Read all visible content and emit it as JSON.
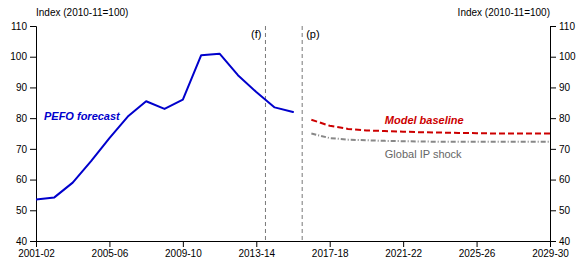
{
  "chart_data": {
    "type": "line",
    "y_label": "Index (2010-11=100)",
    "y2_label": "Index (2010-11=100)",
    "xlim": [
      0,
      28
    ],
    "xticks": [
      {
        "value": 0,
        "label": "2001-02"
      },
      {
        "value": 4,
        "label": "2005-06"
      },
      {
        "value": 8,
        "label": "2009-10"
      },
      {
        "value": 12,
        "label": "2013-14"
      },
      {
        "value": 16,
        "label": "2017-18"
      },
      {
        "value": 20,
        "label": "2021-22"
      },
      {
        "value": 24,
        "label": "2025-26"
      },
      {
        "value": 28,
        "label": "2029-30"
      }
    ],
    "ylim": [
      40,
      110
    ],
    "yticks": [
      40,
      50,
      60,
      70,
      80,
      90,
      100,
      110
    ],
    "y2lim": [
      40,
      110
    ],
    "y2ticks": [
      40,
      50,
      60,
      70,
      80,
      90,
      100,
      110
    ],
    "grid": false,
    "series": [
      {
        "name": "PEFO forecast",
        "color": "#0000cc",
        "line_style": "solid",
        "x": [
          0,
          1,
          2,
          3,
          4,
          5,
          6,
          7,
          8,
          9,
          10,
          11,
          12,
          13,
          14
        ],
        "values": [
          53.5,
          54.2,
          59.0,
          66.0,
          73.5,
          80.5,
          85.5,
          83.0,
          86.0,
          100.5,
          101.0,
          94.0,
          88.5,
          83.5,
          82.0
        ]
      },
      {
        "name": "Model baseline",
        "color": "#cc0000",
        "line_style": "dashed",
        "x": [
          15,
          16,
          17,
          18,
          19,
          20,
          21,
          22,
          23,
          24,
          25,
          26,
          27,
          28
        ],
        "values": [
          79.5,
          77.5,
          76.5,
          76.0,
          75.8,
          75.6,
          75.4,
          75.3,
          75.2,
          75.1,
          75.0,
          75.0,
          75.0,
          75.0
        ]
      },
      {
        "name": "Global IP shock",
        "color": "#888888",
        "line_style": "dashdot",
        "x": [
          15,
          16,
          17,
          18,
          19,
          20,
          21,
          22,
          23,
          24,
          25,
          26,
          27,
          28
        ],
        "values": [
          75.0,
          73.5,
          73.0,
          72.8,
          72.6,
          72.5,
          72.4,
          72.3,
          72.3,
          72.3,
          72.3,
          72.3,
          72.3,
          72.3
        ]
      }
    ],
    "vlines": [
      {
        "x": 12.5,
        "label": "(f)"
      },
      {
        "x": 14.5,
        "label": "(p)"
      }
    ]
  }
}
